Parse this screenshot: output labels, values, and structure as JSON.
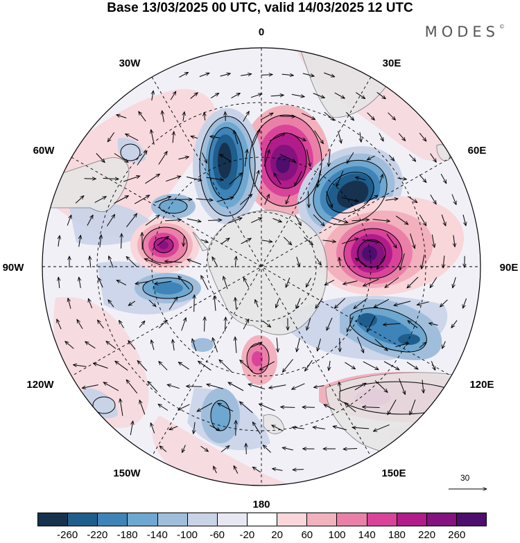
{
  "title": "Base 13/03/2025 00 UTC, valid 14/03/2025 12 UTC",
  "brand": "MODES",
  "brand_mark": "©",
  "longitude_labels": {
    "lon_0": "0",
    "lon_30e": "30E",
    "lon_60e": "60E",
    "lon_90e": "90E",
    "lon_120e": "120E",
    "lon_150e": "150E",
    "lon_180": "180",
    "lon_150w": "150W",
    "lon_120w": "120W",
    "lon_90w": "90W",
    "lon_60w": "60W",
    "lon_30w": "30W"
  },
  "reference_vector": {
    "label": "30"
  },
  "colorbar": {
    "ticks": [
      "-260",
      "-220",
      "-180",
      "-140",
      "-100",
      "-60",
      "-20",
      "20",
      "60",
      "100",
      "140",
      "180",
      "220",
      "260"
    ],
    "colors": [
      "#16324f",
      "#1f5e8c",
      "#3f84b8",
      "#6ea7cf",
      "#a0bedc",
      "#c9d3e8",
      "#e8e8f3",
      "#ffffff",
      "#f8d6da",
      "#f2b1bd",
      "#ea80a8",
      "#d9449a",
      "#b21c8a",
      "#85127e",
      "#4f0d6e"
    ]
  },
  "colors": {
    "land": "#e6e6e6",
    "coast": "#555555",
    "grid": "#000000"
  },
  "features": [
    {
      "name": "anomaly-positive-south-atlantic",
      "sign": "+",
      "level": 260
    },
    {
      "name": "anomaly-negative-southwest-atlantic",
      "sign": "-",
      "level": -260
    },
    {
      "name": "anomaly-negative-south-indian",
      "sign": "-",
      "level": -260
    },
    {
      "name": "anomaly-positive-southeast-indian",
      "sign": "+",
      "level": 260
    },
    {
      "name": "anomaly-positive-drake-passage",
      "sign": "+",
      "level": 220
    },
    {
      "name": "anomaly-negative-southeast-pacific",
      "sign": "-",
      "level": -180
    },
    {
      "name": "anomaly-negative-australian-bight",
      "sign": "-",
      "level": -180
    },
    {
      "name": "anomaly-positive-australia",
      "sign": "+",
      "level": 140
    },
    {
      "name": "anomaly-positive-ross-sea",
      "sign": "+",
      "level": 180
    },
    {
      "name": "anomaly-negative-south-pacific-west",
      "sign": "-",
      "level": -100
    }
  ]
}
